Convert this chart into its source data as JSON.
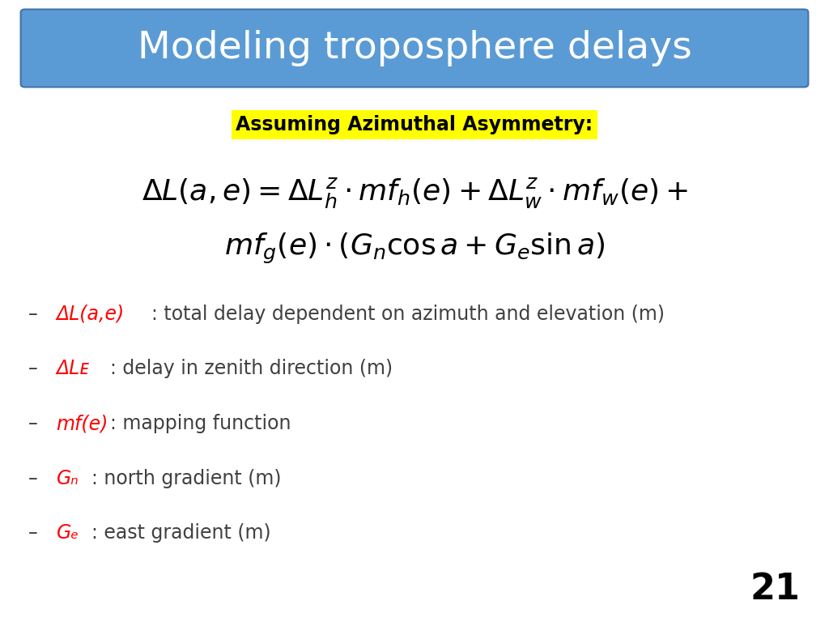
{
  "title": "Modeling troposphere delays",
  "title_bg_color": "#5b9bd5",
  "title_text_color": "#ffffff",
  "title_fontsize": 34,
  "bg_color": "#ffffff",
  "highlight_text": "Assuming Azimuthal Asymmetry:",
  "highlight_bg": "#ffff00",
  "highlight_fontsize": 17,
  "formula_fontsize": 26,
  "bullet_items": [
    {
      "red_part": "ΔL(a,e)",
      "black_part": ": total delay dependent on azimuth and elevation (m)"
    },
    {
      "red_part": "ΔLᴇ",
      "black_part": ": delay in zenith direction (m)"
    },
    {
      "red_part": "mf(e)",
      "black_part": ": mapping function"
    },
    {
      "red_part": "Gₙ",
      "black_part": ": north gradient (m)"
    },
    {
      "red_part": "Gₑ",
      "black_part": ": east gradient (m)"
    }
  ],
  "bullet_fontsize": 17,
  "red_color": "#ff0000",
  "dark_color": "#404040",
  "page_number": "21",
  "page_number_fontsize": 32
}
